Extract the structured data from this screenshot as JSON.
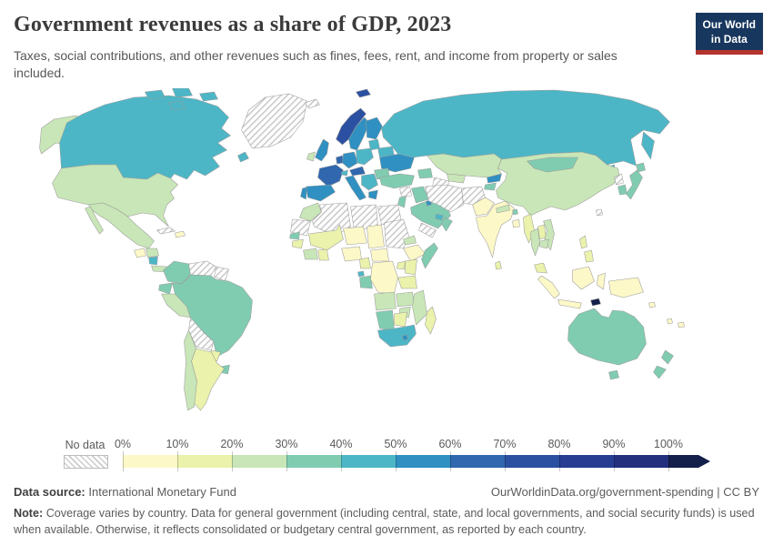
{
  "header": {
    "title": "Government revenues as a share of GDP, 2023",
    "subtitle": "Taxes, social contributions, and other revenues such as fines, fees, rent, and income from property or sales included.",
    "logo": {
      "line1": "Our World",
      "line2": "in Data",
      "bg_color": "#18375e",
      "accent_color": "#b5332d"
    }
  },
  "legend": {
    "no_data_label": "No data",
    "tick_labels": [
      "0%",
      "10%",
      "20%",
      "30%",
      "40%",
      "50%",
      "60%",
      "70%",
      "80%",
      "90%",
      "100%"
    ],
    "bin_colors": [
      "#fdf8c8",
      "#eaf2ab",
      "#c8e6b7",
      "#80ccb1",
      "#4db6c6",
      "#2f90c1",
      "#3067ae",
      "#2c50a1",
      "#273d92",
      "#22307e",
      "#14204a"
    ],
    "bin_ranges": [
      "0-10%",
      "10-20%",
      "20-30%",
      "30-40%",
      "40-50%",
      "50-60%",
      "60-70%",
      "70-80%",
      "80-90%",
      "90-100%",
      ">100%"
    ],
    "no_data_pattern": "diagonal-hatch"
  },
  "chart_data": {
    "type": "heatmap",
    "subtype": "choropleth world map",
    "title": "Government revenues as a share of GDP, 2023",
    "year": "2023",
    "unit": "% of GDP",
    "value_encoding": "bin index into legend.bin_colors; -1 = no data",
    "regions": [
      {
        "id": "canada",
        "label": "Canada",
        "bin": 4
      },
      {
        "id": "usa",
        "label": "United States",
        "bin": 2
      },
      {
        "id": "greenland",
        "label": "Greenland",
        "bin": -1
      },
      {
        "id": "mexico",
        "label": "Mexico",
        "bin": 2
      },
      {
        "id": "guatemala",
        "label": "Guatemala",
        "bin": 0
      },
      {
        "id": "honduras",
        "label": "Honduras",
        "bin": 2
      },
      {
        "id": "nicaragua",
        "label": "Nicaragua",
        "bin": 4
      },
      {
        "id": "costa-rica-panama",
        "label": "Costa Rica / Panama",
        "bin": 2
      },
      {
        "id": "cuba",
        "label": "Cuba",
        "bin": -1
      },
      {
        "id": "hispaniola",
        "label": "Haiti / Dominican Republic",
        "bin": 0
      },
      {
        "id": "colombia",
        "label": "Colombia",
        "bin": 3
      },
      {
        "id": "venezuela",
        "label": "Venezuela",
        "bin": -1
      },
      {
        "id": "guyanas",
        "label": "Guyana / Suriname",
        "bin": -1
      },
      {
        "id": "ecuador",
        "label": "Ecuador",
        "bin": 3
      },
      {
        "id": "peru",
        "label": "Peru",
        "bin": 2
      },
      {
        "id": "brazil",
        "label": "Brazil",
        "bin": 3
      },
      {
        "id": "bolivia",
        "label": "Bolivia",
        "bin": -1
      },
      {
        "id": "paraguay",
        "label": "Paraguay",
        "bin": 1
      },
      {
        "id": "uruguay",
        "label": "Uruguay",
        "bin": 3
      },
      {
        "id": "argentina",
        "label": "Argentina",
        "bin": 1
      },
      {
        "id": "chile",
        "label": "Chile",
        "bin": 2
      },
      {
        "id": "iceland",
        "label": "Iceland",
        "bin": -1
      },
      {
        "id": "norway",
        "label": "Norway",
        "bin": 7
      },
      {
        "id": "svalbard",
        "label": "Svalbard",
        "bin": 7
      },
      {
        "id": "sweden",
        "label": "Sweden",
        "bin": 5
      },
      {
        "id": "finland",
        "label": "Finland",
        "bin": 5
      },
      {
        "id": "denmark",
        "label": "Denmark",
        "bin": 5
      },
      {
        "id": "uk",
        "label": "United Kingdom",
        "bin": 5
      },
      {
        "id": "ireland",
        "label": "Ireland",
        "bin": 2
      },
      {
        "id": "netherlands-belgium",
        "label": "Netherlands / Belgium",
        "bin": 6
      },
      {
        "id": "germany",
        "label": "Germany",
        "bin": 5
      },
      {
        "id": "france",
        "label": "France",
        "bin": 6
      },
      {
        "id": "spain",
        "label": "Spain",
        "bin": 5
      },
      {
        "id": "portugal",
        "label": "Portugal",
        "bin": 5
      },
      {
        "id": "switzerland",
        "label": "Switzerland",
        "bin": 4
      },
      {
        "id": "czechia-austria",
        "label": "Czechia / Austria",
        "bin": 6
      },
      {
        "id": "poland",
        "label": "Poland",
        "bin": 4
      },
      {
        "id": "baltics",
        "label": "Baltic states",
        "bin": 4
      },
      {
        "id": "belarus",
        "label": "Belarus",
        "bin": 4
      },
      {
        "id": "ukraine",
        "label": "Ukraine",
        "bin": 5
      },
      {
        "id": "romania",
        "label": "Romania",
        "bin": 3
      },
      {
        "id": "balkans",
        "label": "Balkans",
        "bin": 4
      },
      {
        "id": "greece",
        "label": "Greece",
        "bin": 5
      },
      {
        "id": "italy",
        "label": "Italy",
        "bin": 5
      },
      {
        "id": "russia",
        "label": "Russia",
        "bin": 4
      },
      {
        "id": "kazakhstan",
        "label": "Kazakhstan",
        "bin": 2
      },
      {
        "id": "uzbekistan",
        "label": "Uzbekistan",
        "bin": 2
      },
      {
        "id": "kyrgyzstan",
        "label": "Kyrgyzstan",
        "bin": 5
      },
      {
        "id": "tajikistan",
        "label": "Tajikistan",
        "bin": 3
      },
      {
        "id": "turkmenistan",
        "label": "Turkmenistan",
        "bin": -1
      },
      {
        "id": "caucasus",
        "label": "Caucasus",
        "bin": 3
      },
      {
        "id": "turkey",
        "label": "Turkey",
        "bin": 3
      },
      {
        "id": "syria",
        "label": "Syria",
        "bin": -1
      },
      {
        "id": "iraq",
        "label": "Iraq",
        "bin": 3
      },
      {
        "id": "israel-jordan",
        "label": "Israel / Jordan",
        "bin": 3
      },
      {
        "id": "saudi-arabia",
        "label": "Saudi Arabia",
        "bin": 3
      },
      {
        "id": "yemen",
        "label": "Yemen",
        "bin": -1
      },
      {
        "id": "oman",
        "label": "Oman",
        "bin": 3
      },
      {
        "id": "uae-qatar",
        "label": "UAE / Qatar",
        "bin": 4
      },
      {
        "id": "kuwait",
        "label": "Kuwait",
        "bin": 5
      },
      {
        "id": "iran",
        "label": "Iran",
        "bin": -1
      },
      {
        "id": "afghanistan",
        "label": "Afghanistan",
        "bin": -1
      },
      {
        "id": "pakistan",
        "label": "Pakistan",
        "bin": 0
      },
      {
        "id": "india",
        "label": "India",
        "bin": 0
      },
      {
        "id": "nepal",
        "label": "Nepal",
        "bin": 2
      },
      {
        "id": "bhutan",
        "label": "Bhutan",
        "bin": 3
      },
      {
        "id": "bangladesh",
        "label": "Bangladesh",
        "bin": 0
      },
      {
        "id": "sri-lanka",
        "label": "Sri Lanka",
        "bin": 1
      },
      {
        "id": "myanmar",
        "label": "Myanmar",
        "bin": 1
      },
      {
        "id": "thailand",
        "label": "Thailand",
        "bin": 2
      },
      {
        "id": "laos",
        "label": "Laos",
        "bin": 1
      },
      {
        "id": "vietnam",
        "label": "Vietnam",
        "bin": 2
      },
      {
        "id": "cambodia",
        "label": "Cambodia",
        "bin": 2
      },
      {
        "id": "malaysia",
        "label": "Malaysia",
        "bin": 1
      },
      {
        "id": "china",
        "label": "China",
        "bin": 2
      },
      {
        "id": "mongolia",
        "label": "Mongolia",
        "bin": 3
      },
      {
        "id": "north-korea",
        "label": "North Korea",
        "bin": -1
      },
      {
        "id": "south-korea",
        "label": "South Korea",
        "bin": 3
      },
      {
        "id": "japan",
        "label": "Japan",
        "bin": 3
      },
      {
        "id": "taiwan",
        "label": "Taiwan",
        "bin": -1
      },
      {
        "id": "philippines",
        "label": "Philippines",
        "bin": 1
      },
      {
        "id": "indonesia",
        "label": "Indonesia",
        "bin": 0
      },
      {
        "id": "timor-leste",
        "label": "Timor-Leste",
        "bin": 10
      },
      {
        "id": "papua-new-guinea",
        "label": "Papua New Guinea",
        "bin": 0
      },
      {
        "id": "australia",
        "label": "Australia",
        "bin": 3
      },
      {
        "id": "new-zealand",
        "label": "New Zealand",
        "bin": 3
      },
      {
        "id": "fiji",
        "label": "Fiji",
        "bin": 0
      },
      {
        "id": "vanuatu",
        "label": "Vanuatu",
        "bin": 0
      },
      {
        "id": "solomon-islands",
        "label": "Solomon Islands",
        "bin": 0
      },
      {
        "id": "morocco",
        "label": "Morocco",
        "bin": 2
      },
      {
        "id": "western-sahara-mauritania",
        "label": "W. Sahara / Mauritania",
        "bin": -1
      },
      {
        "id": "algeria",
        "label": "Algeria",
        "bin": -1
      },
      {
        "id": "libya",
        "label": "Libya",
        "bin": -1
      },
      {
        "id": "egypt",
        "label": "Egypt",
        "bin": -1
      },
      {
        "id": "sudan",
        "label": "Sudan",
        "bin": -1
      },
      {
        "id": "mali",
        "label": "Mali",
        "bin": 1
      },
      {
        "id": "niger",
        "label": "Niger",
        "bin": 0
      },
      {
        "id": "chad",
        "label": "Chad",
        "bin": 0
      },
      {
        "id": "senegal",
        "label": "Senegal",
        "bin": 3
      },
      {
        "id": "guinea",
        "label": "Guinea",
        "bin": 1
      },
      {
        "id": "cote-divoire",
        "label": "Cote d'Ivoire",
        "bin": 2
      },
      {
        "id": "ghana",
        "label": "Ghana",
        "bin": 1
      },
      {
        "id": "nigeria",
        "label": "Nigeria",
        "bin": 0
      },
      {
        "id": "cameroon",
        "label": "Cameroon",
        "bin": 1
      },
      {
        "id": "central-african-republic",
        "label": "Central African Republic",
        "bin": 0
      },
      {
        "id": "equatorial-guinea",
        "label": "Equatorial Guinea",
        "bin": 4
      },
      {
        "id": "gabon-congo",
        "label": "Gabon / Congo",
        "bin": 3
      },
      {
        "id": "drc",
        "label": "Democratic Republic of Congo",
        "bin": 0
      },
      {
        "id": "eritrea",
        "label": "Eritrea",
        "bin": 2
      },
      {
        "id": "ethiopia",
        "label": "Ethiopia",
        "bin": 0
      },
      {
        "id": "somalia",
        "label": "Somalia",
        "bin": 3
      },
      {
        "id": "uganda",
        "label": "Uganda",
        "bin": 1
      },
      {
        "id": "kenya",
        "label": "Kenya",
        "bin": 1
      },
      {
        "id": "tanzania",
        "label": "Tanzania",
        "bin": 1
      },
      {
        "id": "angola",
        "label": "Angola",
        "bin": 2
      },
      {
        "id": "zambia",
        "label": "Zambia",
        "bin": 2
      },
      {
        "id": "mozambique",
        "label": "Mozambique",
        "bin": 2
      },
      {
        "id": "zimbabwe",
        "label": "Zimbabwe",
        "bin": 2
      },
      {
        "id": "namibia",
        "label": "Namibia",
        "bin": 3
      },
      {
        "id": "botswana",
        "label": "Botswana",
        "bin": 1
      },
      {
        "id": "south-africa",
        "label": "South Africa",
        "bin": 4
      },
      {
        "id": "lesotho",
        "label": "Lesotho",
        "bin": 5
      },
      {
        "id": "madagascar",
        "label": "Madagascar",
        "bin": 1
      }
    ]
  },
  "footer": {
    "datasource_label": "Data source:",
    "datasource_value": "International Monetary Fund",
    "link_text": "OurWorldinData.org/government-spending",
    "separator": "|",
    "license": "CC BY",
    "note_label": "Note:",
    "note_text": "Coverage varies by country. Data for general government (including central, state, and local governments, and social security funds) is used when available. Otherwise, it reflects consolidated or budgetary central government, as reported by each country."
  }
}
